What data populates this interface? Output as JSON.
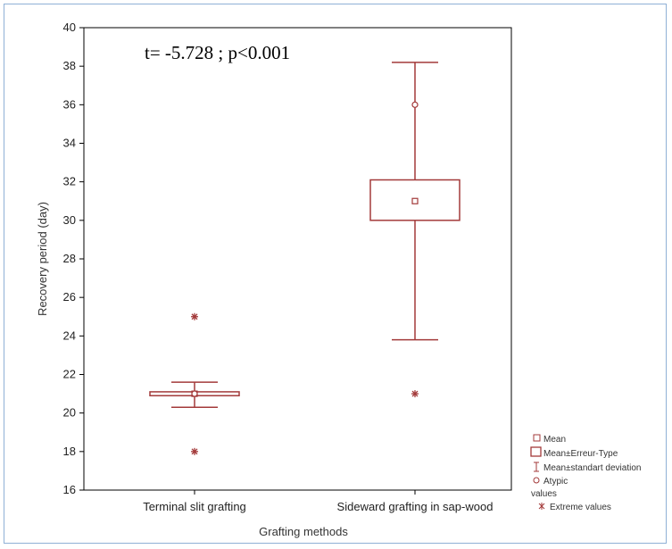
{
  "colors": {
    "box": "#a33a3a",
    "frame": "#8fb0d6",
    "axis": "#000000"
  },
  "chart_data": {
    "type": "box",
    "xlabel": "Grafting methods",
    "ylabel": "Recovery period (day)",
    "ylim": [
      16,
      40
    ],
    "yticks": [
      16,
      18,
      20,
      22,
      24,
      26,
      28,
      30,
      32,
      34,
      36,
      38,
      40
    ],
    "annotation": "t= -5.728 ; p<0.001",
    "categories": [
      "Terminal slit grafting",
      "Sideward grafting in sap-wood"
    ],
    "groups": [
      {
        "category": "Terminal slit grafting",
        "mean": 21.0,
        "se_low": 20.9,
        "se_high": 21.1,
        "sd_low": 20.3,
        "sd_high": 21.6,
        "atypic": [
          21.0
        ],
        "extreme": [
          25.0,
          18.0
        ]
      },
      {
        "category": "Sideward grafting in sap-wood",
        "mean": 31.0,
        "se_low": 30.0,
        "se_high": 32.1,
        "sd_low": 23.8,
        "sd_high": 38.2,
        "atypic": [
          36.0
        ],
        "extreme": [
          21.0
        ]
      }
    ],
    "legend": {
      "items": [
        {
          "symbol": "square-small",
          "label": "Mean"
        },
        {
          "symbol": "square-large",
          "label": "Mean±Erreur-Type"
        },
        {
          "symbol": "whisker",
          "label": "Mean±standart deviation"
        },
        {
          "symbol": "circle",
          "label": "Atypic"
        },
        {
          "symbol": "none",
          "label": "values"
        },
        {
          "symbol": "star",
          "label": "Extreme values"
        }
      ]
    }
  }
}
